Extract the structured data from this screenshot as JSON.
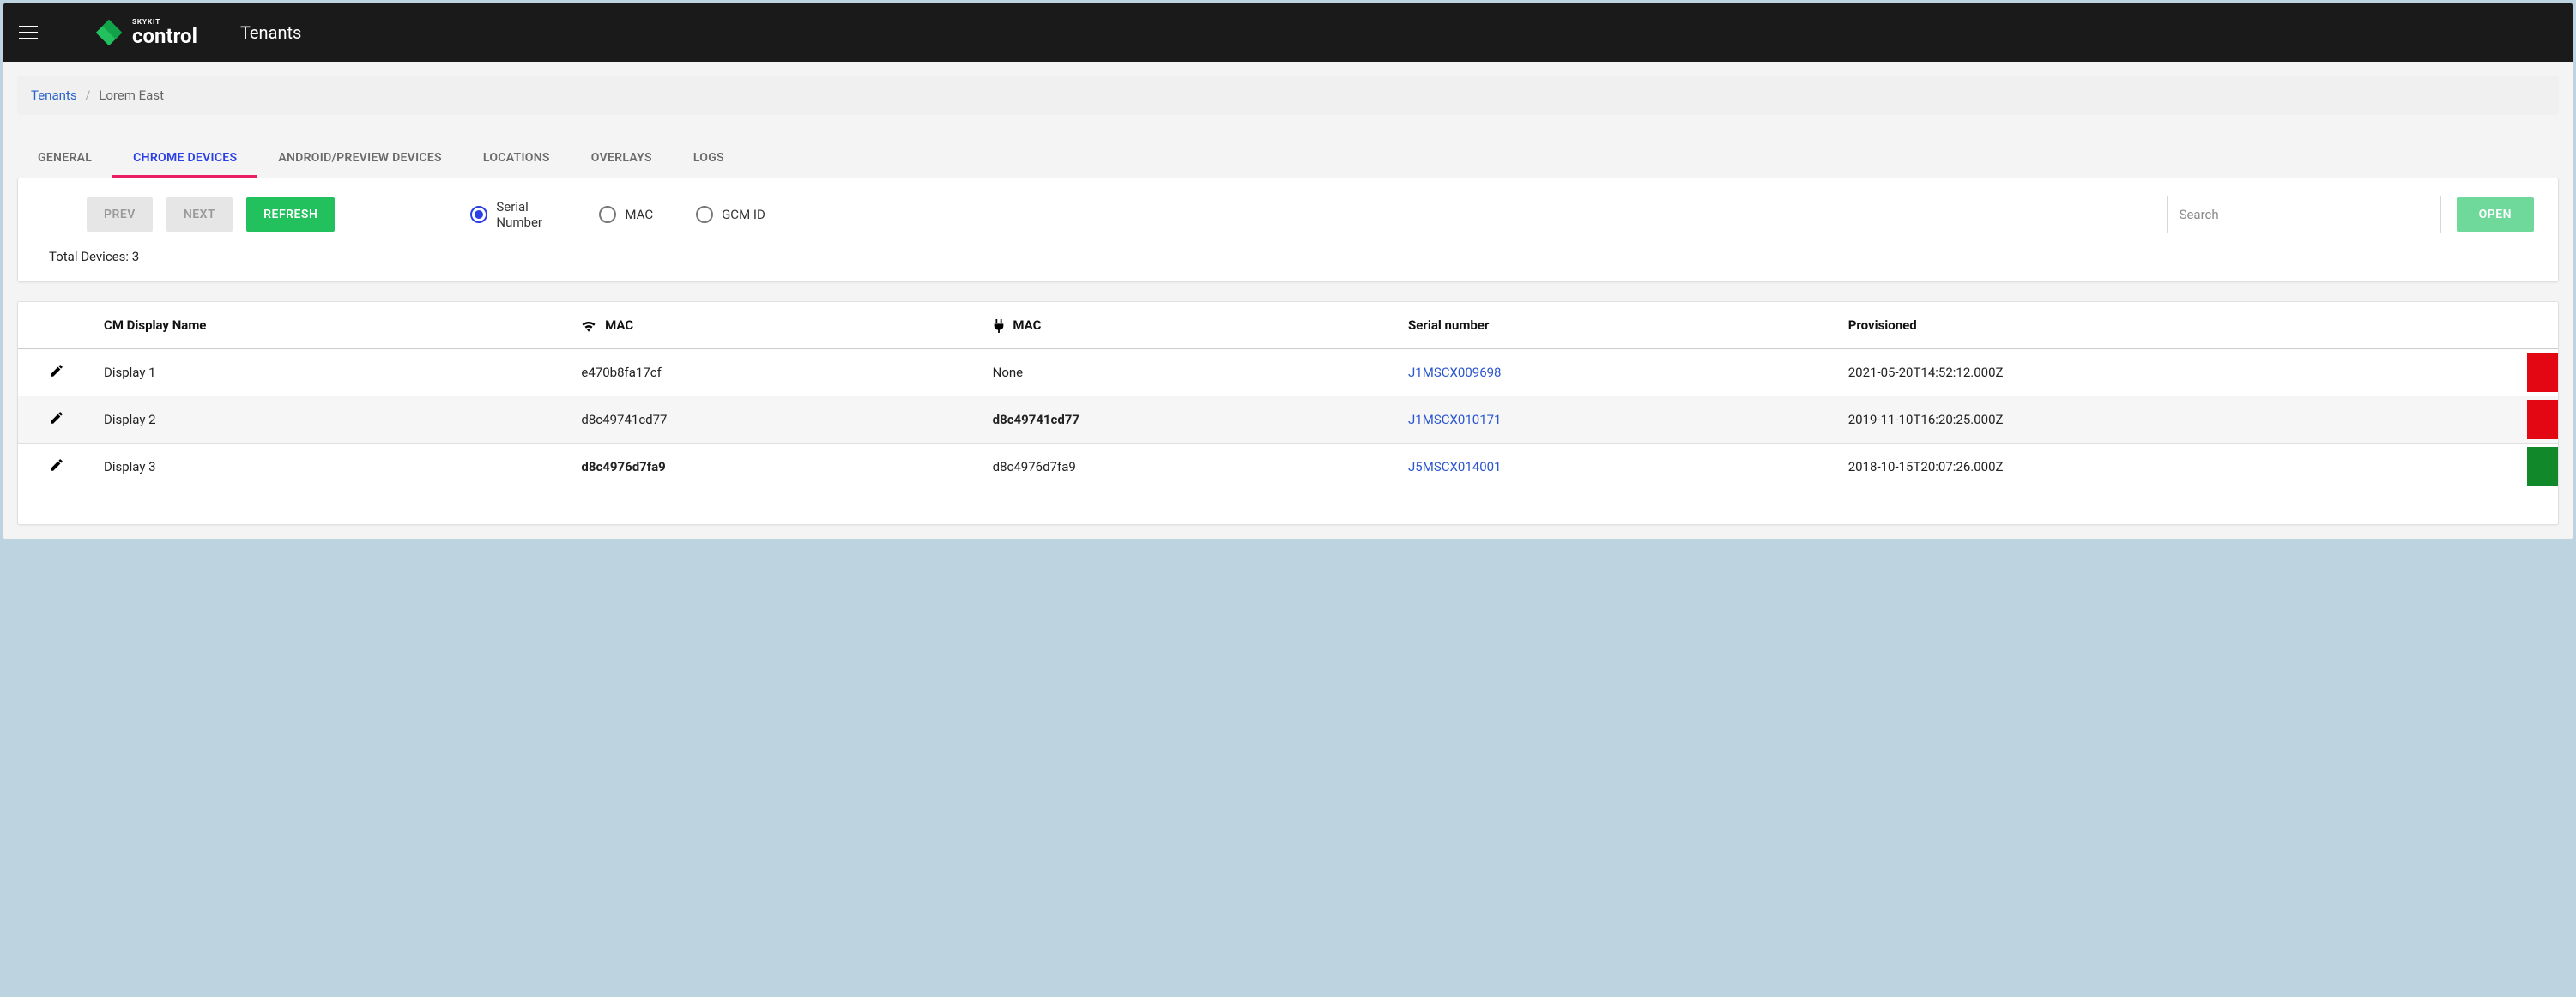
{
  "colors": {
    "accent": "#22c15e",
    "open": "#6ed99a",
    "tab_active_text": "#2a3fe6",
    "tab_underline": "#e91e63",
    "link": "#2a55d0",
    "status_red": "#e30613",
    "status_green": "#11892b",
    "header_bg": "#1a1a1a"
  },
  "header": {
    "brand_small": "SKYKIT",
    "brand_big": "control",
    "title": "Tenants",
    "menu_icon": "menu-icon",
    "logo_icon": "logo-icon"
  },
  "breadcrumb": {
    "root": "Tenants",
    "current": "Lorem East",
    "separator": "/"
  },
  "tabs": [
    {
      "label": "GENERAL",
      "active": false
    },
    {
      "label": "CHROME DEVICES",
      "active": true
    },
    {
      "label": "ANDROID/PREVIEW DEVICES",
      "active": false
    },
    {
      "label": "LOCATIONS",
      "active": false
    },
    {
      "label": "OVERLAYS",
      "active": false
    },
    {
      "label": "LOGS",
      "active": false
    }
  ],
  "toolbar": {
    "prev_label": "PREV",
    "next_label": "NEXT",
    "refresh_label": "REFRESH",
    "open_label": "OPEN",
    "search_placeholder": "Search",
    "radios": [
      {
        "label": "Serial Number",
        "checked": true
      },
      {
        "label": "MAC",
        "checked": false
      },
      {
        "label": "GCM ID",
        "checked": false
      }
    ],
    "total_devices_prefix": "Total Devices: ",
    "total_devices_count": "3"
  },
  "table": {
    "columns": {
      "display_name": "CM Display Name",
      "wifi_mac": "MAC",
      "wifi_icon": "wifi-icon",
      "eth_mac": "MAC",
      "eth_icon": "plug-icon",
      "serial": "Serial number",
      "provisioned": "Provisioned"
    },
    "rows": [
      {
        "display": "Display 1",
        "wifi": "e470b8fa17cf",
        "wifi_bold": false,
        "eth": "None",
        "eth_bold": false,
        "serial": "J1MSCX009698",
        "provisioned": "2021-05-20T14:52:12.000Z",
        "status": "red",
        "alt": false
      },
      {
        "display": "Display 2",
        "wifi": "d8c49741cd77",
        "wifi_bold": false,
        "eth": "d8c49741cd77",
        "eth_bold": true,
        "serial": "J1MSCX010171",
        "provisioned": "2019-11-10T16:20:25.000Z",
        "status": "red",
        "alt": true
      },
      {
        "display": "Display 3",
        "wifi": "d8c4976d7fa9",
        "wifi_bold": true,
        "eth": "d8c4976d7fa9",
        "eth_bold": false,
        "serial": "J5MSCX014001",
        "provisioned": "2018-10-15T20:07:26.000Z",
        "status": "green",
        "alt": false
      }
    ]
  }
}
